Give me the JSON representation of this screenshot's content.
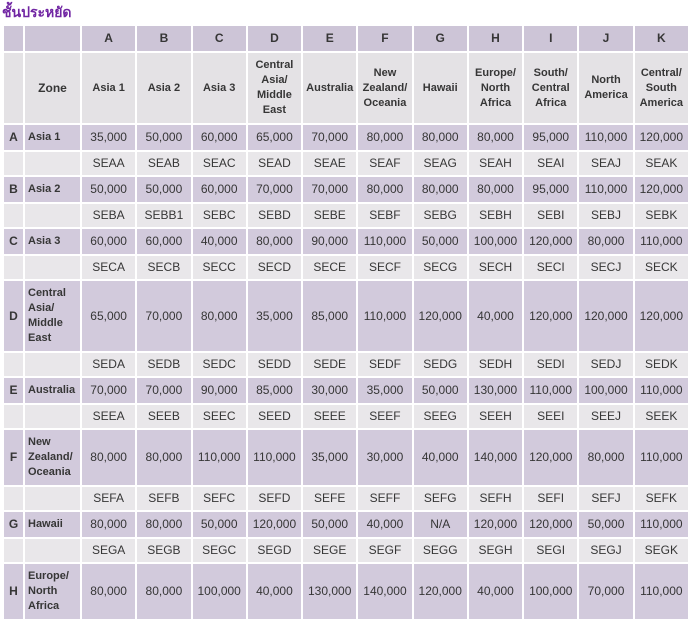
{
  "title": "ชั้นประหยัด",
  "colors": {
    "title_text": "#7126a3",
    "lavender_cell": "#d2cadc",
    "header_lavender": "#cdc5d7",
    "light_cell": "#e9e7ea",
    "zone_header_row": "#e4e2e5",
    "cell_text": "#363636"
  },
  "table": {
    "zone_header_label": "Zone",
    "column_letters": [
      "A",
      "B",
      "C",
      "D",
      "E",
      "F",
      "G",
      "H",
      "I",
      "J",
      "K"
    ],
    "column_zones": [
      "Asia 1",
      "Asia 2",
      "Asia 3",
      "Central Asia/Middle East",
      "Australia",
      "New Zealand/Oceania",
      "Hawaii",
      "Europe/North Africa",
      "South/Central Africa",
      "North America",
      "Central/South America"
    ],
    "rows": [
      {
        "letter": "A",
        "zone": "Asia 1",
        "values": [
          "35,000",
          "50,000",
          "60,000",
          "65,000",
          "70,000",
          "80,000",
          "80,000",
          "80,000",
          "95,000",
          "110,000",
          "120,000"
        ],
        "codes": [
          "SEAA",
          "SEAB",
          "SEAC",
          "SEAD",
          "SEAE",
          "SEAF",
          "SEAG",
          "SEAH",
          "SEAI",
          "SEAJ",
          "SEAK"
        ]
      },
      {
        "letter": "B",
        "zone": "Asia 2",
        "values": [
          "50,000",
          "50,000",
          "60,000",
          "70,000",
          "70,000",
          "80,000",
          "80,000",
          "80,000",
          "95,000",
          "110,000",
          "120,000"
        ],
        "codes": [
          "SEBA",
          "SEBB1",
          "SEBC",
          "SEBD",
          "SEBE",
          "SEBF",
          "SEBG",
          "SEBH",
          "SEBI",
          "SEBJ",
          "SEBK"
        ]
      },
      {
        "letter": "C",
        "zone": "Asia 3",
        "values": [
          "60,000",
          "60,000",
          "40,000",
          "80,000",
          "90,000",
          "110,000",
          "50,000",
          "100,000",
          "120,000",
          "80,000",
          "110,000"
        ],
        "codes": [
          "SECA",
          "SECB",
          "SECC",
          "SECD",
          "SECE",
          "SECF",
          "SECG",
          "SECH",
          "SECI",
          "SECJ",
          "SECK"
        ]
      },
      {
        "letter": "D",
        "zone": "Central Asia/Middle East",
        "values": [
          "65,000",
          "70,000",
          "80,000",
          "35,000",
          "85,000",
          "110,000",
          "120,000",
          "40,000",
          "120,000",
          "120,000",
          "120,000"
        ],
        "codes": [
          "SEDA",
          "SEDB",
          "SEDC",
          "SEDD",
          "SEDE",
          "SEDF",
          "SEDG",
          "SEDH",
          "SEDI",
          "SEDJ",
          "SEDK"
        ]
      },
      {
        "letter": "E",
        "zone": "Australia",
        "values": [
          "70,000",
          "70,000",
          "90,000",
          "85,000",
          "30,000",
          "35,000",
          "50,000",
          "130,000",
          "110,000",
          "100,000",
          "110,000"
        ],
        "codes": [
          "SEEA",
          "SEEB",
          "SEEC",
          "SEED",
          "SEEE",
          "SEEF",
          "SEEG",
          "SEEH",
          "SEEI",
          "SEEJ",
          "SEEK"
        ]
      },
      {
        "letter": "F",
        "zone": "New Zealand/Oceania",
        "values": [
          "80,000",
          "80,000",
          "110,000",
          "110,000",
          "35,000",
          "30,000",
          "40,000",
          "140,000",
          "120,000",
          "80,000",
          "110,000"
        ],
        "codes": [
          "SEFA",
          "SEFB",
          "SEFC",
          "SEFD",
          "SEFE",
          "SEFF",
          "SEFG",
          "SEFH",
          "SEFI",
          "SEFJ",
          "SEFK"
        ]
      },
      {
        "letter": "G",
        "zone": "Hawaii",
        "values": [
          "80,000",
          "80,000",
          "50,000",
          "120,000",
          "50,000",
          "40,000",
          "N/A",
          "120,000",
          "120,000",
          "50,000",
          "110,000"
        ],
        "codes": [
          "SEGA",
          "SEGB",
          "SEGC",
          "SEGD",
          "SEGE",
          "SEGF",
          "SEGG",
          "SEGH",
          "SEGI",
          "SEGJ",
          "SEGK"
        ]
      },
      {
        "letter": "H",
        "zone": "Europe/North Africa",
        "values": [
          "80,000",
          "80,000",
          "100,000",
          "40,000",
          "130,000",
          "140,000",
          "120,000",
          "40,000",
          "100,000",
          "70,000",
          "110,000"
        ],
        "codes": null
      }
    ]
  }
}
